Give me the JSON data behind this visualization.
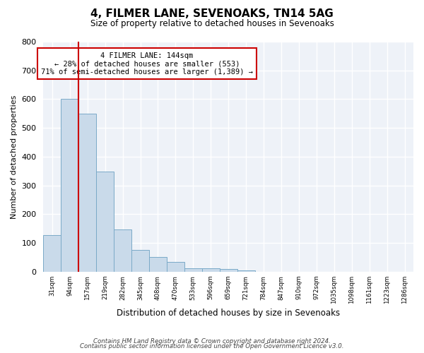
{
  "title": "4, FILMER LANE, SEVENOAKS, TN14 5AG",
  "subtitle": "Size of property relative to detached houses in Sevenoaks",
  "bar_values": [
    128,
    600,
    550,
    348,
    148,
    75,
    51,
    33,
    12,
    11,
    10,
    5,
    0,
    0,
    0,
    0,
    0,
    0,
    0,
    0,
    0
  ],
  "bin_labels": [
    "31sqm",
    "94sqm",
    "157sqm",
    "219sqm",
    "282sqm",
    "345sqm",
    "408sqm",
    "470sqm",
    "533sqm",
    "596sqm",
    "659sqm",
    "721sqm",
    "784sqm",
    "847sqm",
    "910sqm",
    "972sqm",
    "1035sqm",
    "1098sqm",
    "1161sqm",
    "1223sqm",
    "1286sqm"
  ],
  "bar_color": "#c9daea",
  "bar_edge_color": "#7aaac8",
  "property_line_color": "#cc0000",
  "property_line_x": 1.5,
  "annotation_title": "4 FILMER LANE: 144sqm",
  "annotation_line1": "← 28% of detached houses are smaller (553)",
  "annotation_line2": "71% of semi-detached houses are larger (1,389) →",
  "annotation_box_color": "#cc0000",
  "xlabel": "Distribution of detached houses by size in Sevenoaks",
  "ylabel": "Number of detached properties",
  "ylim": [
    0,
    800
  ],
  "yticks": [
    0,
    100,
    200,
    300,
    400,
    500,
    600,
    700,
    800
  ],
  "footer1": "Contains HM Land Registry data © Crown copyright and database right 2024.",
  "footer2": "Contains public sector information licensed under the Open Government Licence v3.0.",
  "bg_color": "#ffffff",
  "plot_bg_color": "#eef2f8",
  "grid_color": "#ffffff"
}
